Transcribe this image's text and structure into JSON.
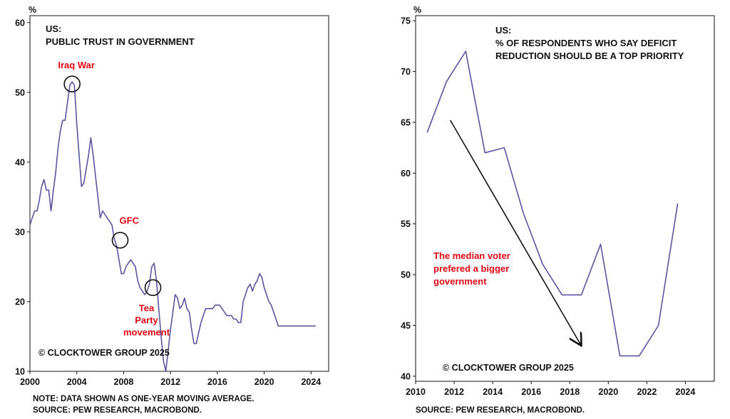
{
  "chart_data": [
    {
      "type": "line",
      "title": "US:",
      "subtitle": "PUBLIC TRUST IN GOVERNMENT",
      "ylabel": "%",
      "xlabel": "",
      "xlim": [
        2000,
        2025.5
      ],
      "ylim": [
        10,
        61
      ],
      "yticks": [
        10,
        20,
        30,
        40,
        50,
        60
      ],
      "xticks": [
        2000,
        2004,
        2008,
        2012,
        2016,
        2020,
        2024
      ],
      "series": [
        {
          "name": "Public trust in government",
          "color": "#5b55a0",
          "x": [
            2000.0,
            2000.2,
            2000.4,
            2000.6,
            2000.8,
            2001.0,
            2001.2,
            2001.4,
            2001.6,
            2001.8,
            2002.0,
            2002.2,
            2002.4,
            2002.6,
            2002.8,
            2003.0,
            2003.2,
            2003.4,
            2003.6,
            2003.8,
            2004.0,
            2004.2,
            2004.4,
            2004.6,
            2004.8,
            2005.0,
            2005.2,
            2005.4,
            2005.6,
            2005.8,
            2006.0,
            2006.2,
            2006.4,
            2006.6,
            2006.8,
            2007.0,
            2007.2,
            2007.4,
            2007.6,
            2007.8,
            2008.0,
            2008.2,
            2008.4,
            2008.6,
            2008.8,
            2009.0,
            2009.2,
            2009.4,
            2009.6,
            2009.8,
            2010.0,
            2010.2,
            2010.4,
            2010.6,
            2010.8,
            2011.0,
            2011.2,
            2011.4,
            2011.6,
            2011.8,
            2012.0,
            2012.2,
            2012.4,
            2012.6,
            2012.8,
            2013.0,
            2013.2,
            2013.4,
            2013.6,
            2013.8,
            2014.0,
            2014.2,
            2014.4,
            2014.6,
            2014.8,
            2015.0,
            2015.2,
            2015.4,
            2015.6,
            2015.8,
            2016.0,
            2016.2,
            2016.4,
            2016.6,
            2016.8,
            2017.0,
            2017.2,
            2017.4,
            2017.6,
            2017.8,
            2018.0,
            2018.2,
            2018.4,
            2018.6,
            2018.8,
            2019.0,
            2019.2,
            2019.4,
            2019.6,
            2019.8,
            2020.0,
            2020.2,
            2020.4,
            2020.6,
            2020.8,
            2021.0,
            2021.2,
            2021.4,
            2021.6,
            2021.8,
            2022.0,
            2022.2,
            2022.4,
            2022.6,
            2022.8,
            2023.0,
            2023.2,
            2023.4,
            2023.6,
            2023.8,
            2024.0,
            2024.2,
            2024.4
          ],
          "y": [
            31.0,
            32.0,
            33.0,
            33.0,
            34.5,
            36.5,
            37.5,
            36.0,
            36.0,
            33.0,
            36.0,
            38.5,
            42.0,
            44.5,
            46.0,
            46.0,
            48.5,
            51.0,
            51.5,
            51.0,
            45.5,
            41.0,
            36.5,
            37.0,
            39.0,
            41.0,
            43.5,
            41.0,
            38.0,
            35.0,
            32.0,
            33.0,
            32.5,
            32.0,
            31.5,
            31.0,
            29.0,
            28.0,
            26.0,
            24.0,
            24.0,
            25.0,
            25.5,
            26.0,
            25.5,
            25.0,
            23.0,
            22.0,
            21.5,
            21.0,
            21.5,
            22.5,
            25.0,
            25.5,
            23.0,
            19.0,
            15.0,
            11.5,
            10.0,
            13.0,
            16.0,
            18.5,
            21.0,
            20.5,
            19.0,
            19.5,
            20.5,
            19.0,
            18.5,
            16.0,
            14.0,
            14.0,
            15.5,
            17.0,
            18.0,
            19.0,
            19.0,
            19.0,
            19.0,
            19.5,
            19.5,
            19.5,
            19.0,
            18.5,
            18.0,
            18.0,
            18.0,
            17.5,
            17.5,
            17.0,
            17.0,
            20.0,
            21.0,
            22.0,
            22.5,
            21.5,
            22.5,
            23.0,
            24.0,
            23.5,
            22.0,
            21.0,
            20.0,
            19.5,
            18.5,
            17.5,
            16.5,
            16.5,
            16.5,
            16.5,
            16.5,
            16.5,
            16.5,
            16.5,
            16.5,
            16.5,
            16.5,
            16.5,
            16.5,
            16.5,
            16.5,
            16.5,
            16.5
          ]
        }
      ],
      "annotations": [
        {
          "label": "Iraq War",
          "x": 2003.6,
          "y": 51.2,
          "circle": true,
          "placement": "above"
        },
        {
          "label": "GFC",
          "x": 2007.7,
          "y": 28.8,
          "circle": true,
          "placement": "above-right"
        },
        {
          "label": "Tea Party movement",
          "lines": [
            "Tea",
            "Party",
            "movement"
          ],
          "x": 2010.5,
          "y": 22.0,
          "circle": true,
          "placement": "below"
        }
      ],
      "copyright": "© CLOCKTOWER GROUP 2025",
      "footnotes": [
        "NOTE: DATA SHOWN AS ONE-YEAR MOVING AVERAGE.",
        "SOURCE: PEW RESEARCH, MACROBOND."
      ]
    },
    {
      "type": "line",
      "title": "US:",
      "subtitle_lines": [
        "% OF RESPONDENTS WHO SAY DEFICIT",
        "REDUCTION SHOULD BE A TOP PRIORITY"
      ],
      "ylabel": "%",
      "xlabel": "",
      "xlim": [
        2010,
        2025.5
      ],
      "ylim": [
        39.5,
        75.5
      ],
      "yticks": [
        40,
        45,
        50,
        55,
        60,
        65,
        70,
        75
      ],
      "xticks": [
        2010,
        2012,
        2014,
        2016,
        2018,
        2020,
        2022,
        2024
      ],
      "series": [
        {
          "name": "Deficit reduction top priority",
          "color": "#5b55a0",
          "x": [
            2010.6,
            2011.6,
            2012.6,
            2013.6,
            2014.6,
            2015.6,
            2016.6,
            2017.6,
            2018.6,
            2019.6,
            2020.6,
            2021.6,
            2022.6,
            2023.6
          ],
          "y": [
            64,
            69,
            72,
            62,
            62.5,
            56,
            51,
            48,
            48,
            53,
            42,
            42,
            45,
            57
          ]
        }
      ],
      "arrow": {
        "from": [
          2011.8,
          65.2
        ],
        "to": [
          2018.6,
          43.0
        ]
      },
      "annotation": {
        "lines": [
          "The median voter",
          "prefered a bigger",
          "government"
        ]
      },
      "copyright": "© CLOCKTOWER GROUP 2025",
      "footnotes": [
        "SOURCE: PEW RESEARCH, MACROBOND."
      ]
    }
  ]
}
